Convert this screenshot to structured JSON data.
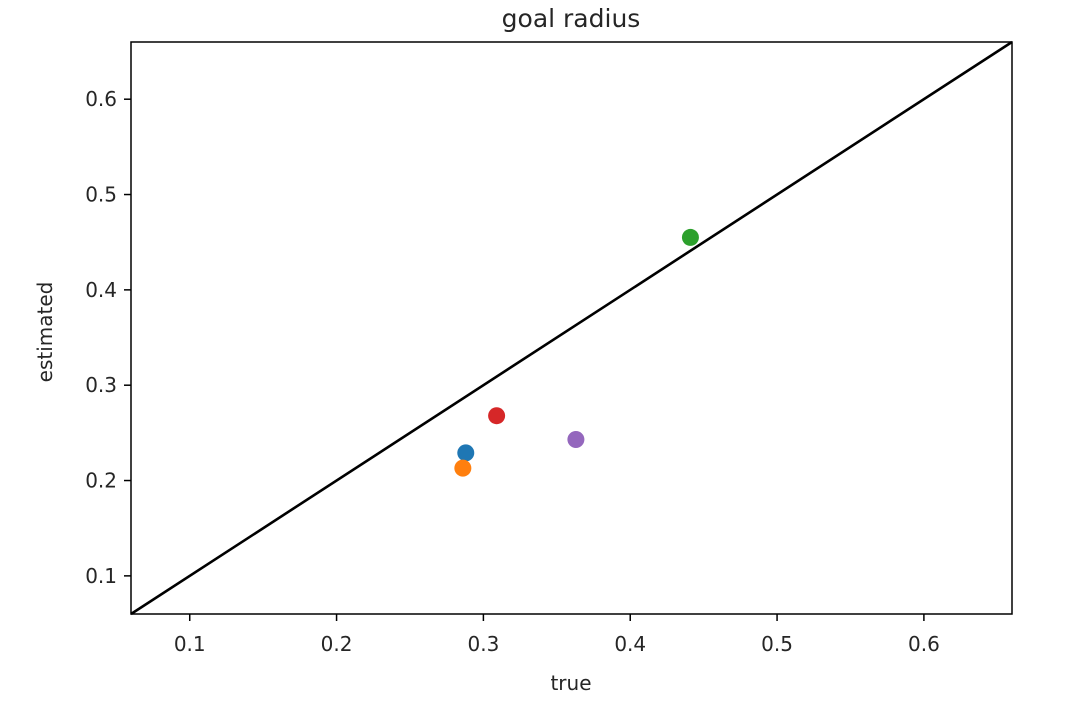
{
  "chart_data": {
    "type": "scatter",
    "title": "goal radius",
    "xlabel": "true",
    "ylabel": "estimated",
    "xlim": [
      0.06,
      0.66
    ],
    "ylim": [
      0.06,
      0.66
    ],
    "xticks": [
      0.1,
      0.2,
      0.3,
      0.4,
      0.5,
      0.6
    ],
    "yticks": [
      0.1,
      0.2,
      0.3,
      0.4,
      0.5,
      0.6
    ],
    "xtick_labels": [
      "0.1",
      "0.2",
      "0.3",
      "0.4",
      "0.5",
      "0.6"
    ],
    "ytick_labels": [
      "0.1",
      "0.2",
      "0.3",
      "0.4",
      "0.5",
      "0.6"
    ],
    "grid": false,
    "reference_line": {
      "type": "identity",
      "x": [
        0.06,
        0.66
      ],
      "y": [
        0.06,
        0.66
      ],
      "color": "#000000"
    },
    "points": [
      {
        "x": 0.288,
        "y": 0.229,
        "color": "#1f77b4"
      },
      {
        "x": 0.286,
        "y": 0.213,
        "color": "#ff7f0e"
      },
      {
        "x": 0.441,
        "y": 0.455,
        "color": "#2ca02c"
      },
      {
        "x": 0.309,
        "y": 0.268,
        "color": "#d62728"
      },
      {
        "x": 0.363,
        "y": 0.243,
        "color": "#9467bd"
      }
    ]
  }
}
